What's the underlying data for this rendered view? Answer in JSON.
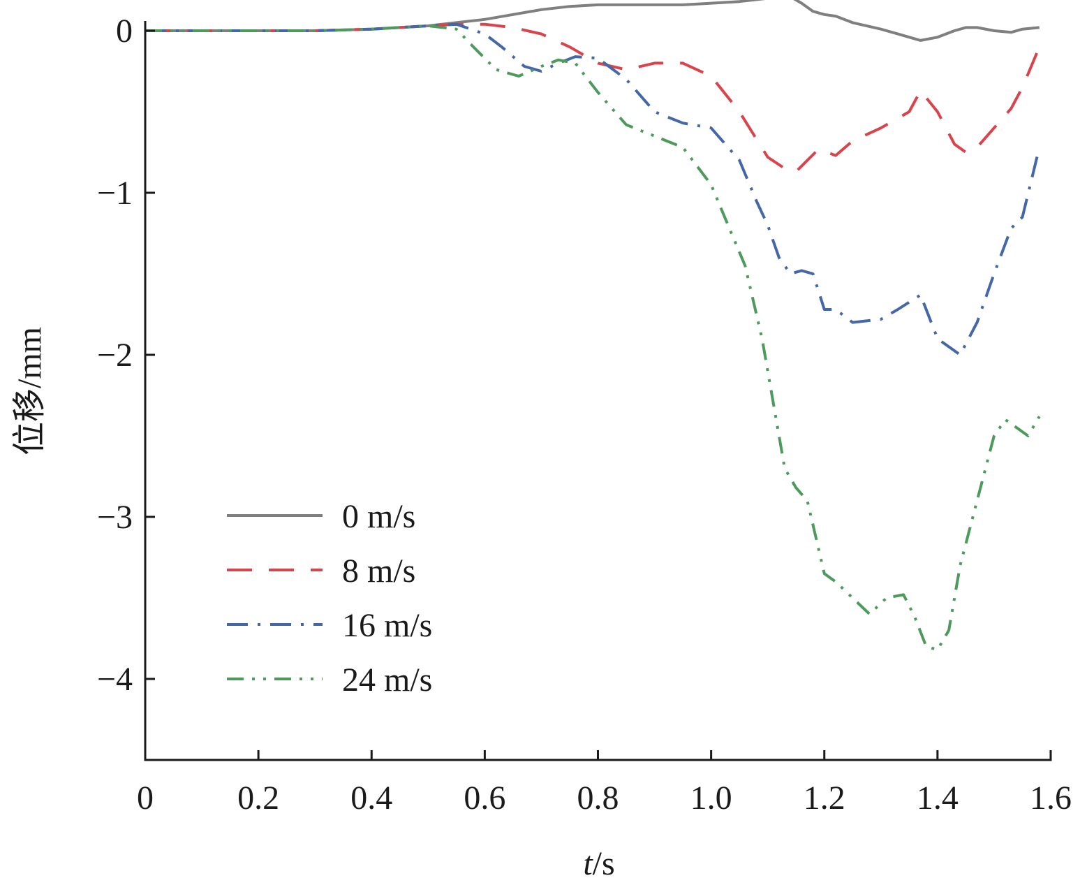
{
  "chart_data": {
    "type": "line",
    "title": "",
    "xlabel_italic": "t",
    "xlabel_rest": "/s",
    "ylabel": "位移/mm",
    "xlim": [
      0,
      1.6
    ],
    "ylim": [
      -4.5,
      0
    ],
    "x_ticks": [
      0,
      0.2,
      0.4,
      0.6,
      0.8,
      1.0,
      1.2,
      1.4,
      1.6
    ],
    "x_tick_labels": [
      "0",
      "0.2",
      "0.4",
      "0.6",
      "0.8",
      "1.0",
      "1.2",
      "1.4",
      "1.6"
    ],
    "y_ticks": [
      0,
      -1,
      -2,
      -3,
      -4
    ],
    "y_tick_labels": [
      "0",
      "−1",
      "−2",
      "−3",
      "−4"
    ],
    "grid": false,
    "legend_position": "bottom-left",
    "series": [
      {
        "name": "0 m/s",
        "color": "#7f7f7f",
        "dash": "solid",
        "x": [
          0,
          0.1,
          0.2,
          0.3,
          0.4,
          0.5,
          0.55,
          0.6,
          0.65,
          0.7,
          0.75,
          0.8,
          0.85,
          0.9,
          0.95,
          1.0,
          1.05,
          1.1,
          1.14,
          1.16,
          1.18,
          1.2,
          1.22,
          1.25,
          1.3,
          1.33,
          1.37,
          1.4,
          1.43,
          1.45,
          1.47,
          1.5,
          1.53,
          1.55,
          1.58
        ],
        "values": [
          0,
          0,
          0,
          0,
          0.01,
          0.03,
          0.05,
          0.07,
          0.1,
          0.13,
          0.15,
          0.16,
          0.16,
          0.16,
          0.16,
          0.17,
          0.18,
          0.2,
          0.21,
          0.17,
          0.12,
          0.1,
          0.09,
          0.05,
          0.01,
          -0.02,
          -0.06,
          -0.04,
          0,
          0.02,
          0.02,
          0,
          -0.01,
          0.01,
          0.02
        ]
      },
      {
        "name": "8 m/s",
        "color": "#d9434b",
        "dash": "dashed",
        "x": [
          0,
          0.1,
          0.2,
          0.3,
          0.4,
          0.5,
          0.55,
          0.6,
          0.65,
          0.7,
          0.75,
          0.8,
          0.85,
          0.9,
          0.95,
          1.0,
          1.05,
          1.1,
          1.13,
          1.15,
          1.17,
          1.19,
          1.22,
          1.25,
          1.3,
          1.35,
          1.37,
          1.4,
          1.43,
          1.45,
          1.47,
          1.5,
          1.53,
          1.55,
          1.58
        ],
        "values": [
          0,
          0,
          0,
          0,
          0.01,
          0.03,
          0.04,
          0.04,
          0.02,
          -0.02,
          -0.1,
          -0.2,
          -0.24,
          -0.2,
          -0.2,
          -0.28,
          -0.5,
          -0.78,
          -0.85,
          -0.87,
          -0.8,
          -0.73,
          -0.77,
          -0.68,
          -0.6,
          -0.5,
          -0.37,
          -0.5,
          -0.7,
          -0.75,
          -0.72,
          -0.6,
          -0.48,
          -0.35,
          -0.1
        ]
      },
      {
        "name": "16 m/s",
        "color": "#4467a8",
        "dash": "dashdot",
        "x": [
          0,
          0.1,
          0.2,
          0.3,
          0.4,
          0.5,
          0.55,
          0.6,
          0.63,
          0.67,
          0.7,
          0.73,
          0.76,
          0.8,
          0.85,
          0.9,
          0.95,
          1.0,
          1.05,
          1.08,
          1.1,
          1.12,
          1.14,
          1.16,
          1.18,
          1.2,
          1.22,
          1.25,
          1.3,
          1.33,
          1.37,
          1.4,
          1.44,
          1.47,
          1.5,
          1.53,
          1.55,
          1.58
        ],
        "values": [
          0,
          0,
          0,
          0,
          0.01,
          0.03,
          0.04,
          -0.02,
          -0.1,
          -0.22,
          -0.25,
          -0.2,
          -0.16,
          -0.17,
          -0.3,
          -0.5,
          -0.57,
          -0.6,
          -0.8,
          -1.05,
          -1.2,
          -1.4,
          -1.5,
          -1.48,
          -1.5,
          -1.72,
          -1.72,
          -1.8,
          -1.78,
          -1.72,
          -1.63,
          -1.9,
          -2.0,
          -1.8,
          -1.5,
          -1.22,
          -1.15,
          -0.72
        ]
      },
      {
        "name": "24 m/s",
        "color": "#4d9a5c",
        "dash": "dashdotdot",
        "x": [
          0,
          0.1,
          0.2,
          0.3,
          0.4,
          0.5,
          0.55,
          0.58,
          0.62,
          0.66,
          0.7,
          0.73,
          0.76,
          0.8,
          0.85,
          0.9,
          0.95,
          1.0,
          1.03,
          1.06,
          1.09,
          1.11,
          1.13,
          1.15,
          1.17,
          1.2,
          1.22,
          1.25,
          1.28,
          1.31,
          1.34,
          1.36,
          1.38,
          1.4,
          1.42,
          1.44,
          1.47,
          1.5,
          1.52,
          1.54,
          1.56,
          1.58
        ],
        "values": [
          0,
          0,
          0,
          0,
          0.01,
          0.03,
          0.01,
          -0.1,
          -0.24,
          -0.28,
          -0.22,
          -0.18,
          -0.2,
          -0.38,
          -0.58,
          -0.65,
          -0.72,
          -0.95,
          -1.2,
          -1.45,
          -1.9,
          -2.3,
          -2.7,
          -2.82,
          -2.9,
          -3.35,
          -3.4,
          -3.5,
          -3.6,
          -3.5,
          -3.48,
          -3.62,
          -3.8,
          -3.82,
          -3.7,
          -3.3,
          -2.9,
          -2.5,
          -2.4,
          -2.45,
          -2.5,
          -2.38
        ]
      }
    ]
  }
}
